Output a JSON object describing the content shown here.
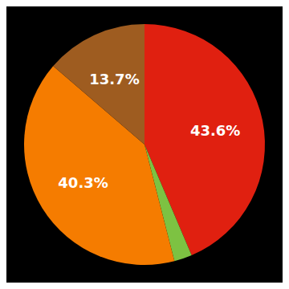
{
  "chart_data": {
    "type": "pie",
    "values": [
      43.6,
      2.4,
      40.3,
      13.7
    ],
    "colors": [
      "#e02010",
      "#7dc242",
      "#f57c00",
      "#9e5c20"
    ],
    "value_labels": [
      "43.6%",
      null,
      "40.3%",
      "13.7%"
    ],
    "data_labels": true
  }
}
